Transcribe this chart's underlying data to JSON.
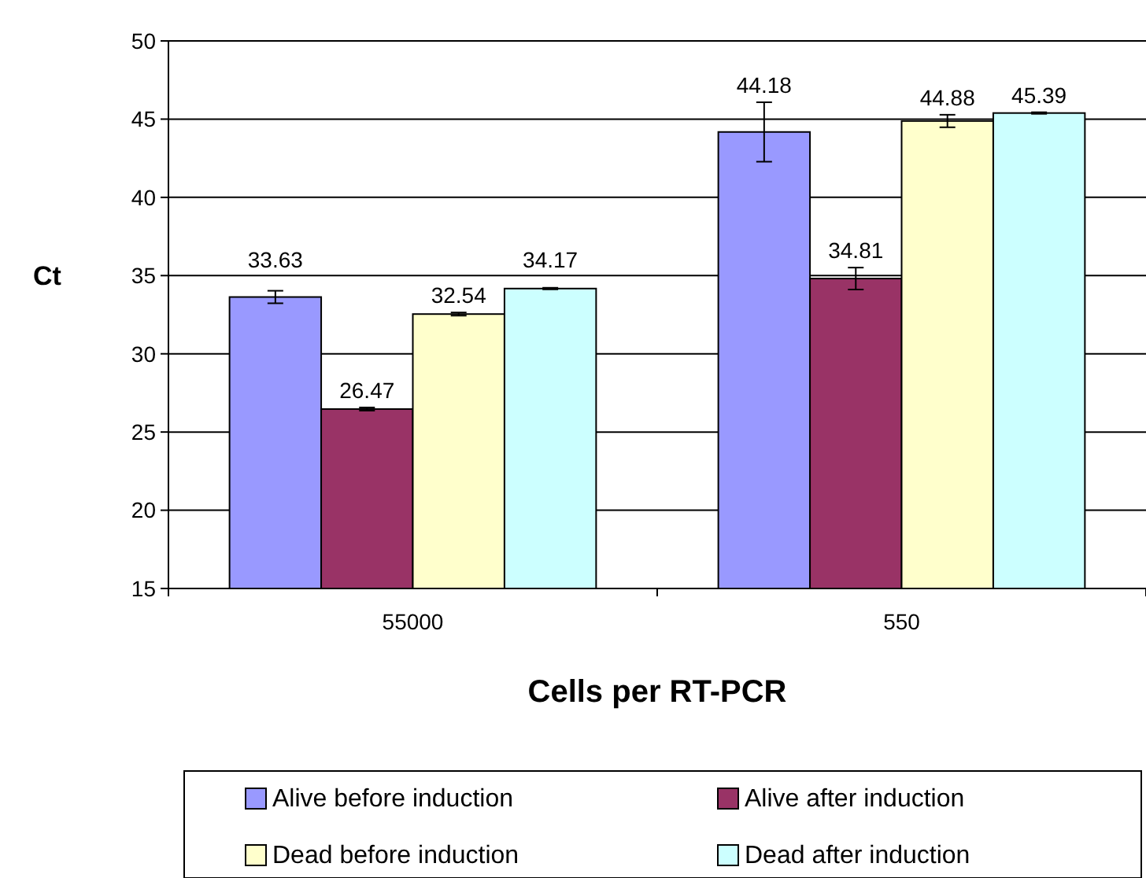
{
  "chart_data": {
    "type": "bar",
    "xlabel": "Cells per RT-PCR",
    "ylabel": "Ct",
    "categories": [
      "55000",
      "550"
    ],
    "series": [
      {
        "name": "Alive before induction",
        "color": "#9999ff",
        "values": [
          33.63,
          44.18
        ],
        "errors": [
          0.4,
          1.9
        ]
      },
      {
        "name": "Alive after induction",
        "color": "#993366",
        "values": [
          26.47,
          34.81
        ],
        "errors": [
          0.1,
          0.7
        ]
      },
      {
        "name": "Dead before induction",
        "color": "#ffffcc",
        "values": [
          32.54,
          44.88
        ],
        "errors": [
          0.1,
          0.4
        ]
      },
      {
        "name": "Dead after induction",
        "color": "#ccffff",
        "values": [
          34.17,
          45.39
        ],
        "errors": [
          0.05,
          0.05
        ]
      }
    ],
    "ylim": [
      15,
      50
    ],
    "yticks": [
      15,
      20,
      25,
      30,
      35,
      40,
      45,
      50
    ],
    "grid": "y",
    "legend": "bottom",
    "data_labels": true
  }
}
